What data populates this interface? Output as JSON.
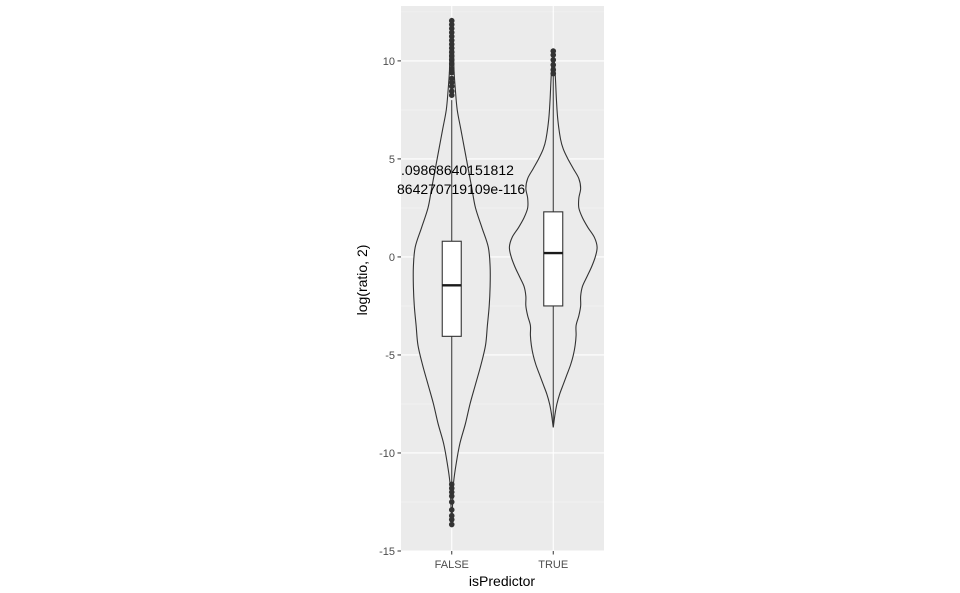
{
  "chart_data": {
    "type": "violin",
    "xlabel": "isPredictor",
    "ylabel": "log(ratio, 2)",
    "ylim": [
      -15,
      12.8
    ],
    "y_ticks": [
      -15,
      -10,
      -5,
      0,
      5,
      10
    ],
    "y_tick_labels": [
      "-15",
      "-10",
      "-5",
      "0",
      "5",
      "10"
    ],
    "categories": [
      "FALSE",
      "TRUE"
    ],
    "grid": true,
    "annotations": [
      ".09868640151812",
      "864270719109e-116"
    ],
    "groups": [
      {
        "name": "FALSE",
        "box": {
          "q1": -4.05,
          "median": -1.45,
          "q3": 0.8,
          "whisker_low": -11.5,
          "whisker_high": 8.0
        },
        "violin_profile": [
          {
            "y": -13.7,
            "w": 0.0
          },
          {
            "y": -12.5,
            "w": 0.01
          },
          {
            "y": -11.5,
            "w": 0.02
          },
          {
            "y": -10.5,
            "w": 0.05
          },
          {
            "y": -9.5,
            "w": 0.09
          },
          {
            "y": -8.5,
            "w": 0.15
          },
          {
            "y": -7.5,
            "w": 0.2
          },
          {
            "y": -6.5,
            "w": 0.26
          },
          {
            "y": -5.5,
            "w": 0.32
          },
          {
            "y": -4.5,
            "w": 0.37
          },
          {
            "y": -3.5,
            "w": 0.39
          },
          {
            "y": -2.5,
            "w": 0.41
          },
          {
            "y": -1.5,
            "w": 0.42
          },
          {
            "y": -0.5,
            "w": 0.42
          },
          {
            "y": 0.5,
            "w": 0.4
          },
          {
            "y": 1.5,
            "w": 0.33
          },
          {
            "y": 2.5,
            "w": 0.26
          },
          {
            "y": 3.5,
            "w": 0.22
          },
          {
            "y": 4.5,
            "w": 0.18
          },
          {
            "y": 5.5,
            "w": 0.14
          },
          {
            "y": 6.5,
            "w": 0.1
          },
          {
            "y": 7.5,
            "w": 0.06
          },
          {
            "y": 8.5,
            "w": 0.04
          },
          {
            "y": 9.5,
            "w": 0.025
          },
          {
            "y": 10.5,
            "w": 0.02
          },
          {
            "y": 11.5,
            "w": 0.01
          },
          {
            "y": 12.1,
            "w": 0.0
          }
        ],
        "outliers": [
          12.05,
          11.85,
          11.65,
          11.45,
          11.25,
          11.05,
          10.85,
          10.65,
          10.45,
          10.25,
          10.05,
          9.85,
          9.6,
          9.4,
          9.1,
          8.9,
          8.7,
          8.45,
          8.25,
          -11.6,
          -11.8,
          -12.0,
          -12.2,
          -12.5,
          -12.9,
          -13.2,
          -13.4,
          -13.65
        ]
      },
      {
        "name": "TRUE",
        "box": {
          "q1": -2.5,
          "median": 0.2,
          "q3": 2.3,
          "whisker_low": -8.5,
          "whisker_high": 9.3
        },
        "violin_profile": [
          {
            "y": -8.7,
            "w": 0.0
          },
          {
            "y": -8.0,
            "w": 0.02
          },
          {
            "y": -7.5,
            "w": 0.04
          },
          {
            "y": -7.0,
            "w": 0.07
          },
          {
            "y": -6.5,
            "w": 0.11
          },
          {
            "y": -6.0,
            "w": 0.15
          },
          {
            "y": -5.5,
            "w": 0.19
          },
          {
            "y": -5.0,
            "w": 0.22
          },
          {
            "y": -4.5,
            "w": 0.24
          },
          {
            "y": -4.0,
            "w": 0.25
          },
          {
            "y": -3.5,
            "w": 0.25
          },
          {
            "y": -3.0,
            "w": 0.28
          },
          {
            "y": -2.5,
            "w": 0.3
          },
          {
            "y": -2.0,
            "w": 0.3
          },
          {
            "y": -1.5,
            "w": 0.32
          },
          {
            "y": -1.0,
            "w": 0.37
          },
          {
            "y": -0.5,
            "w": 0.42
          },
          {
            "y": 0.0,
            "w": 0.46
          },
          {
            "y": 0.5,
            "w": 0.48
          },
          {
            "y": 1.0,
            "w": 0.45
          },
          {
            "y": 1.5,
            "w": 0.38
          },
          {
            "y": 2.0,
            "w": 0.32
          },
          {
            "y": 2.5,
            "w": 0.28
          },
          {
            "y": 3.0,
            "w": 0.28
          },
          {
            "y": 3.5,
            "w": 0.3
          },
          {
            "y": 4.0,
            "w": 0.28
          },
          {
            "y": 4.5,
            "w": 0.22
          },
          {
            "y": 5.0,
            "w": 0.16
          },
          {
            "y": 5.5,
            "w": 0.11
          },
          {
            "y": 6.0,
            "w": 0.08
          },
          {
            "y": 7.0,
            "w": 0.05
          },
          {
            "y": 8.0,
            "w": 0.035
          },
          {
            "y": 9.0,
            "w": 0.025
          },
          {
            "y": 9.8,
            "w": 0.015
          },
          {
            "y": 10.5,
            "w": 0.0
          }
        ],
        "outliers": [
          10.5,
          10.3,
          10.05,
          9.8,
          9.55,
          9.35
        ]
      }
    ]
  }
}
